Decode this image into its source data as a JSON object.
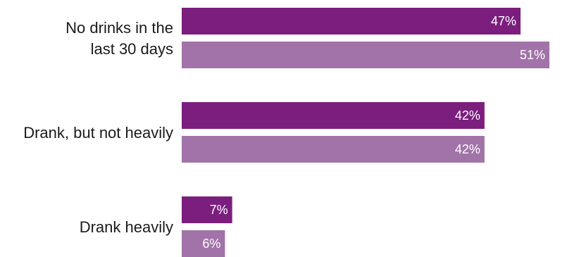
{
  "chart_data": {
    "type": "bar",
    "orientation": "horizontal",
    "categories": [
      "No drinks in the last 30 days",
      "Drank, but not heavily",
      "Drank heavily"
    ],
    "category_lines": [
      [
        "No drinks in the",
        "last 30 days"
      ],
      [
        "Drank, but not heavily"
      ],
      [
        "Drank heavily"
      ]
    ],
    "series": [
      {
        "values": [
          47,
          42,
          7
        ],
        "labels": [
          "47%",
          "42%",
          "7%"
        ],
        "color": "#7B1E7E"
      },
      {
        "values": [
          51,
          42,
          6
        ],
        "labels": [
          "51%",
          "42%",
          "6%"
        ],
        "color": "#A173A8"
      }
    ],
    "xlim": [
      0,
      51
    ],
    "unit": "%",
    "title": "",
    "xlabel": "",
    "ylabel": "",
    "legend": "none",
    "grid": false
  }
}
